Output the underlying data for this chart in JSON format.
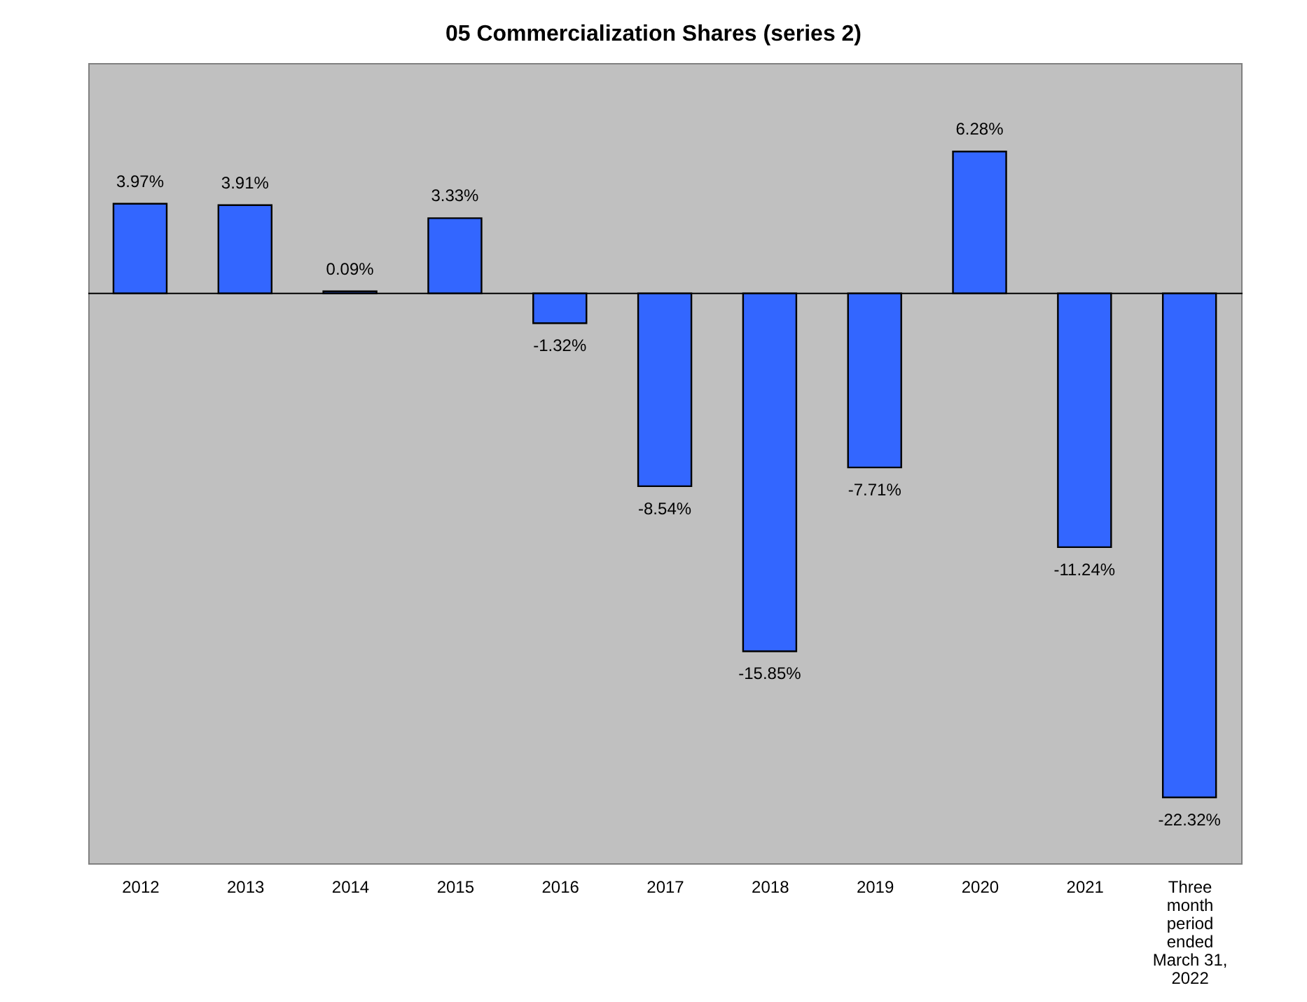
{
  "chart_data": {
    "type": "bar",
    "title": "05 Commercialization Shares (series 2)",
    "categories": [
      "2012",
      "2013",
      "2014",
      "2015",
      "2016",
      "2017",
      "2018",
      "2019",
      "2020",
      "2021",
      "Three month period ended March 31, 2022"
    ],
    "values": [
      3.97,
      3.91,
      0.09,
      3.33,
      -1.32,
      -8.54,
      -15.85,
      -7.71,
      6.28,
      -11.24,
      -22.32
    ],
    "value_labels": [
      "3.97%",
      "3.91%",
      "0.09%",
      "3.33%",
      "-1.32%",
      "-8.54%",
      "-15.85%",
      "-7.71%",
      "6.28%",
      "-11.24%",
      "-22.32%"
    ],
    "color": "#3366ff",
    "ylim": [
      -25.3,
      10.2
    ],
    "legend": false
  }
}
